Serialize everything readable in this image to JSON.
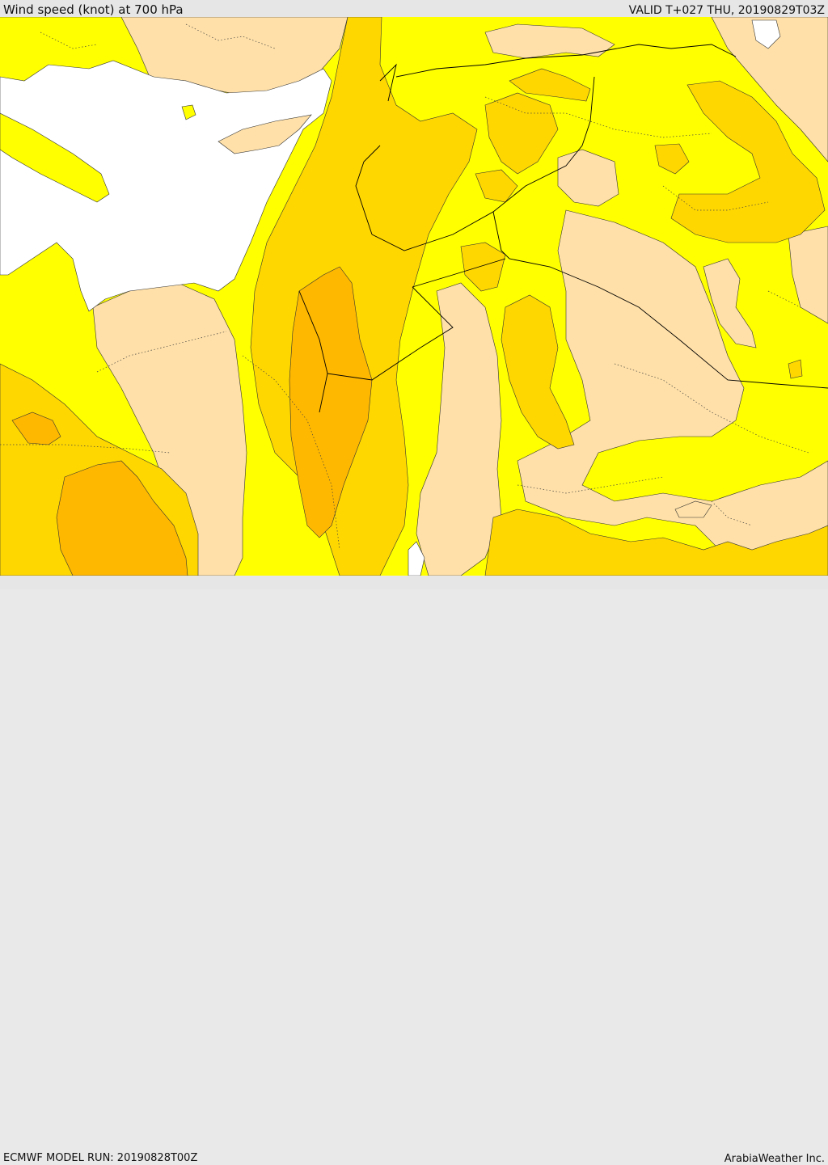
{
  "header": {
    "title": "Wind speed (knot) at 700 hPa",
    "valid": "VALID T+027 THU, 20190829T03Z"
  },
  "footer": {
    "model_run": "ECMWF MODEL RUN: 20190828T00Z",
    "credit": "ArabiaWeather Inc."
  },
  "colors": {
    "sea": "#ffffff",
    "band_low": "#ffe0a8",
    "band_mid": "#ffff00",
    "band_high": "#ffd700",
    "band_higher": "#ffb800",
    "band_peak": "#f5a000",
    "border": "#000000"
  }
}
